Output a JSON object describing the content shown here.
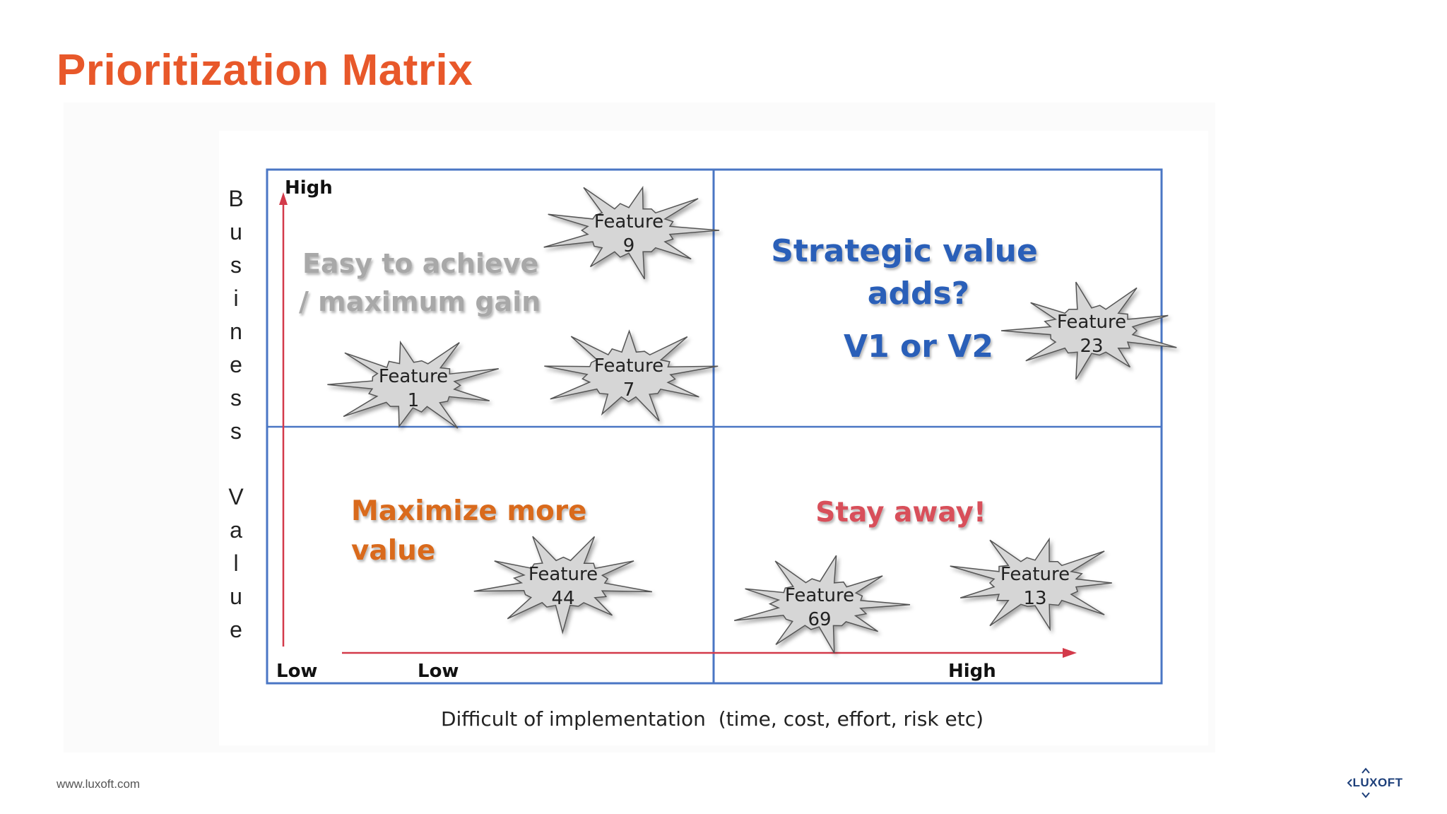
{
  "slide": {
    "title": "Prioritization Matrix",
    "footer_url": "www.luxoft.com",
    "logo_text": "LUXOFT"
  },
  "colors": {
    "title": "#e8582a",
    "grid": "#4a76c4",
    "arrow": "#d33a4a",
    "quadrant_top_left": "#a8a8a8",
    "quadrant_top_right": "#2a5fb8",
    "quadrant_bottom_left": "#d96a1e",
    "quadrant_bottom_right": "#d84f5a",
    "starburst_fill": "#d6d6d6",
    "logo": "#1d3f7a"
  },
  "matrix": {
    "y_axis_title": "Business Value",
    "y_high": "High",
    "y_low": "Low",
    "x_axis_title": "Difficult of implementation  (time, cost, effort, risk etc)",
    "x_low": "Low",
    "x_high": "High",
    "quadrants": {
      "top_left": [
        "Easy to achieve",
        "/ maximum gain"
      ],
      "top_right": [
        "Strategic value",
        "adds?",
        "V1 or V2"
      ],
      "bottom_left": [
        "Maximize more",
        "value"
      ],
      "bottom_right": [
        "Stay away!"
      ]
    },
    "features": [
      {
        "label": "Feature",
        "number": "9",
        "quadrant": "top-left"
      },
      {
        "label": "Feature",
        "number": "7",
        "quadrant": "top-left"
      },
      {
        "label": "Feature",
        "number": "1",
        "quadrant": "top-left"
      },
      {
        "label": "Feature",
        "number": "23",
        "quadrant": "top-right"
      },
      {
        "label": "Feature",
        "number": "44",
        "quadrant": "bottom-left"
      },
      {
        "label": "Feature",
        "number": "69",
        "quadrant": "bottom-right"
      },
      {
        "label": "Feature",
        "number": "13",
        "quadrant": "bottom-right"
      }
    ]
  }
}
